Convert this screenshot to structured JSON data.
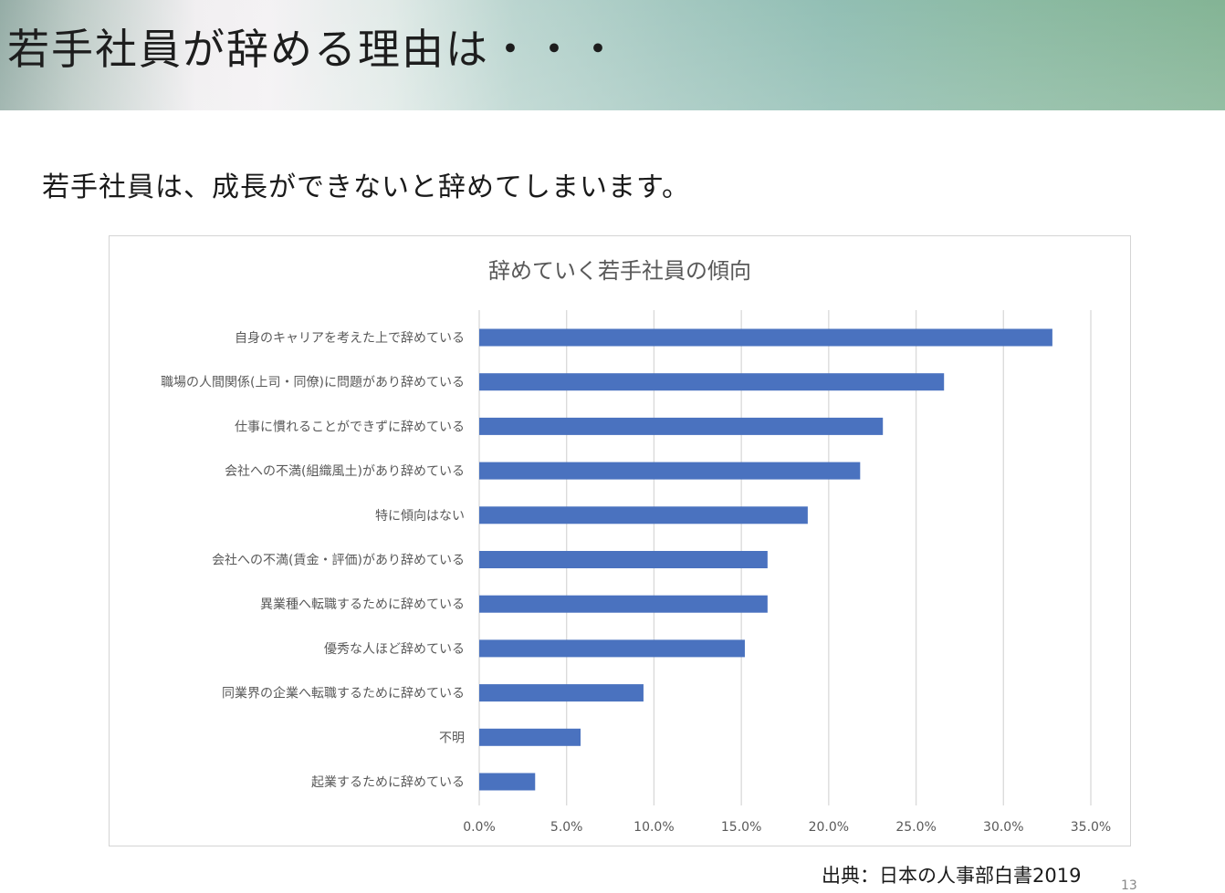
{
  "slide": {
    "title": "若手社員が辞める理由は・・・",
    "lead": "若手社員は、成長ができないと辞めてしまいます。",
    "source": "出典：日本の人事部白書2019",
    "page_number": "13"
  },
  "colors": {
    "bar": "#4a72bf",
    "grid": "#d9d9d9",
    "label": "#595959"
  },
  "chart_data": {
    "type": "bar",
    "orientation": "horizontal",
    "title": "辞めていく若手社員の傾向",
    "categories": [
      "自身のキャリアを考えた上で辞めている",
      "職場の人間関係(上司・同僚)に問題があり辞めている",
      "仕事に慣れることができずに辞めている",
      "会社への不満(組織風土)があり辞めている",
      "特に傾向はない",
      "会社への不満(賃金・評価)があり辞めている",
      "異業種へ転職するために辞めている",
      "優秀な人ほど辞めている",
      "同業界の企業へ転職するために辞めている",
      "不明",
      "起業するために辞めている"
    ],
    "values": [
      32.8,
      26.6,
      23.1,
      21.8,
      18.8,
      16.5,
      16.5,
      15.2,
      9.4,
      5.8,
      3.2
    ],
    "unit": "%",
    "xlim": [
      0,
      35
    ],
    "ticks": [
      "0.0%",
      "5.0%",
      "10.0%",
      "15.0%",
      "20.0%",
      "25.0%",
      "30.0%",
      "35.0%"
    ],
    "grid": true,
    "legend": "none"
  }
}
